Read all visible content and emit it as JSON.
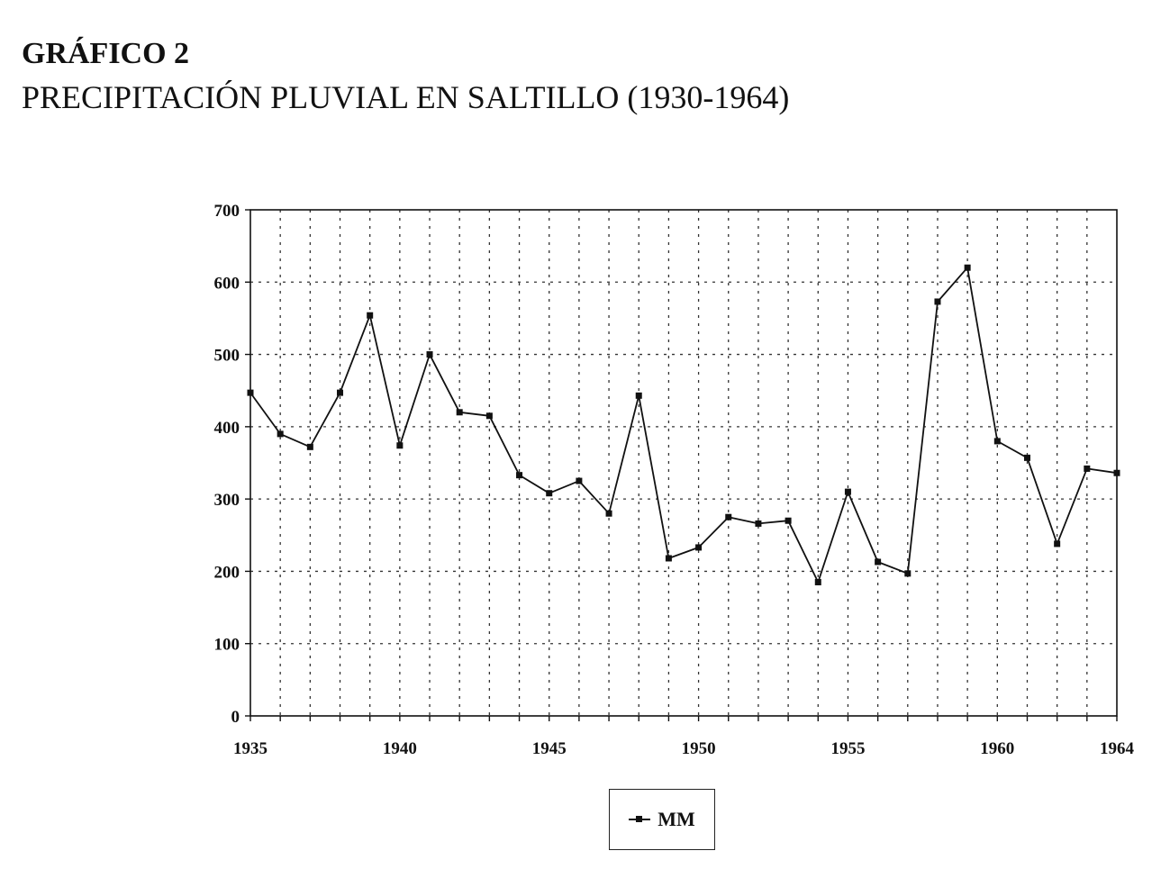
{
  "header": {
    "label": "GRÁFICO 2",
    "title": "PRECIPITACIÓN PLUVIAL EN SALTILLO (1930-1964)"
  },
  "chart_data": {
    "type": "line",
    "x": [
      1935,
      1936,
      1937,
      1938,
      1939,
      1940,
      1941,
      1942,
      1943,
      1944,
      1945,
      1946,
      1947,
      1948,
      1949,
      1950,
      1951,
      1952,
      1953,
      1954,
      1955,
      1956,
      1957,
      1958,
      1959,
      1960,
      1961,
      1962,
      1963,
      1964
    ],
    "x_tick_labels": [
      "1935",
      "1940",
      "1945",
      "1950",
      "1955",
      "1960",
      "1964"
    ],
    "x_tick_values": [
      1935,
      1940,
      1945,
      1950,
      1955,
      1960,
      1964
    ],
    "y_tick_labels": [
      "0",
      "100",
      "200",
      "300",
      "400",
      "500",
      "600",
      "700"
    ],
    "ylim": [
      0,
      700
    ],
    "series": [
      {
        "name": "MM",
        "values": [
          447,
          390,
          372,
          447,
          554,
          374,
          500,
          420,
          415,
          333,
          308,
          325,
          280,
          443,
          218,
          233,
          275,
          266,
          270,
          185,
          310,
          213,
          197,
          573,
          620,
          380,
          357,
          238,
          342,
          336
        ]
      }
    ],
    "grid": "dotted",
    "legend_position": "bottom-center",
    "line_color": "#111111"
  }
}
